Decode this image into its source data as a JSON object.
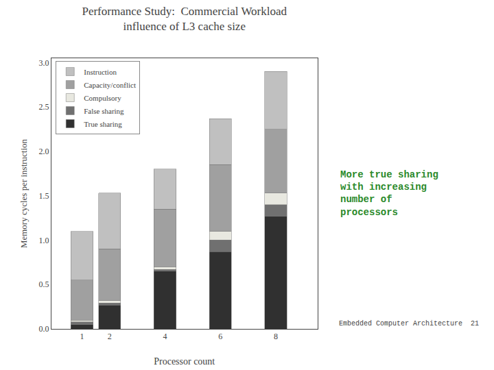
{
  "chart_data": {
    "type": "bar",
    "stacked": true,
    "title": "Performance Study:  Commercial Workload",
    "subtitle": "influence of L3 cache size",
    "xlabel": "Processor count",
    "ylabel": "Memory cycles per instruction",
    "x": [
      1,
      2,
      4,
      6,
      8
    ],
    "xlim": [
      -0.1,
      9.5
    ],
    "xticks": [
      1,
      2,
      4,
      6,
      8
    ],
    "ylim": [
      0,
      3.05
    ],
    "yticks": [
      {
        "value": 0,
        "label": "0.0"
      },
      0.5,
      {
        "value": 1.0,
        "label": "1.0"
      },
      1.5,
      {
        "value": 2.0,
        "label": "2.0"
      },
      2.5,
      {
        "value": 3.0,
        "label": "3.0"
      }
    ],
    "grid": false,
    "legend": "upper left",
    "series": [
      {
        "name": "True sharing",
        "color": "#303030",
        "values": [
          0.05,
          0.27,
          0.65,
          0.87,
          1.27
        ]
      },
      {
        "name": "False sharing",
        "color": "#707070",
        "values": [
          0.03,
          0.02,
          0.02,
          0.13,
          0.13
        ]
      },
      {
        "name": "Compulsory",
        "color": "#e8e8e0",
        "values": [
          0.02,
          0.03,
          0.03,
          0.1,
          0.13
        ]
      },
      {
        "name": "Capacity/conflict",
        "color": "#a0a0a0",
        "values": [
          0.45,
          0.58,
          0.65,
          0.75,
          0.72
        ]
      },
      {
        "name": "Instruction",
        "color": "#c0c0c0",
        "values": [
          0.55,
          0.63,
          0.45,
          0.52,
          0.65
        ]
      }
    ],
    "annotations": [
      {
        "text": "More true sharing\nwith increasing\nnumber of\nprocessors",
        "color": "#2a8a2a"
      },
      {
        "text": "Embedded Computer Architecture  21",
        "color": "#444444"
      }
    ]
  }
}
